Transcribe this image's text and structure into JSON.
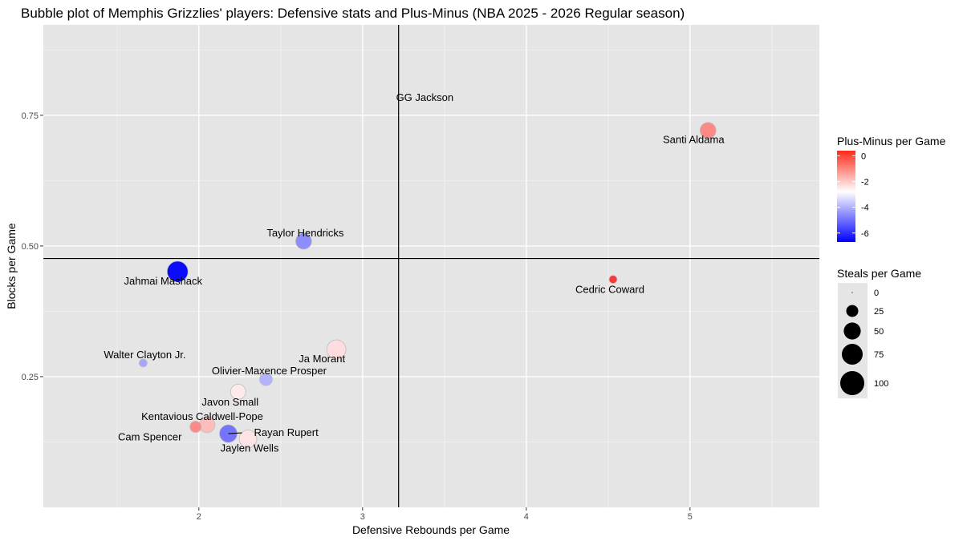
{
  "chart_data": {
    "type": "scatter",
    "title": "Bubble plot of Memphis Grizzlies' players: Defensive stats and Plus-Minus (NBA 2025 - 2026 Regular season)",
    "xlabel": "Defensive Rebounds per Game",
    "ylabel": "Blocks per Game",
    "xlim": [
      1.05,
      5.79
    ],
    "ylim": [
      0.0,
      0.923
    ],
    "x_ticks": [
      2,
      3,
      4,
      5
    ],
    "x_tick_labels": [
      "2",
      "3",
      "4",
      "5"
    ],
    "y_ticks": [
      0.25,
      0.5,
      0.75
    ],
    "y_tick_labels": [
      "0.25",
      "0.50",
      "0.75"
    ],
    "grid": true,
    "reference_lines": {
      "vertical_x": 3.22,
      "horizontal_y": 0.476
    },
    "points": [
      {
        "name": "GG Jackson",
        "x": 3.38,
        "y": 0.802,
        "steals": 0,
        "plus_minus": -2.0
      },
      {
        "name": "Santi Aldama",
        "x": 5.11,
        "y": 0.721,
        "steals": 44,
        "plus_minus": -1.0
      },
      {
        "name": "Taylor Hendricks",
        "x": 2.64,
        "y": 0.509,
        "steals": 44,
        "plus_minus": -4.6
      },
      {
        "name": "Jahmai Mashack",
        "x": 1.87,
        "y": 0.451,
        "steals": 75,
        "plus_minus": -6.7
      },
      {
        "name": "Cedric Coward",
        "x": 4.53,
        "y": 0.436,
        "steals": 11,
        "plus_minus": 0.3
      },
      {
        "name": "Ja Morant",
        "x": 2.84,
        "y": 0.302,
        "steals": 64,
        "plus_minus": -2.3
      },
      {
        "name": "Walter Clayton Jr.",
        "x": 1.66,
        "y": 0.276,
        "steals": 11,
        "plus_minus": -4.2
      },
      {
        "name": "Olivier-Maxence Prosper",
        "x": 2.41,
        "y": 0.245,
        "steals": 28,
        "plus_minus": -4.0
      },
      {
        "name": "Javon Small",
        "x": 2.24,
        "y": 0.221,
        "steals": 40,
        "plus_minus": -2.5
      },
      {
        "name": "Kentavious Caldwell-Pope",
        "x": 2.05,
        "y": 0.158,
        "steals": 44,
        "plus_minus": -1.8
      },
      {
        "name": "Cam Spencer",
        "x": 1.98,
        "y": 0.154,
        "steals": 22,
        "plus_minus": -1.0
      },
      {
        "name": "Rayan Rupert",
        "x": 2.18,
        "y": 0.141,
        "steals": 54,
        "plus_minus": -5.0
      },
      {
        "name": "Jaylen Wells",
        "x": 2.3,
        "y": 0.131,
        "steals": 54,
        "plus_minus": -2.4
      }
    ],
    "color_legend": {
      "title": "Plus-Minus per Game",
      "range": [
        -6.7,
        0.4
      ],
      "midpoint": -2.8,
      "low_color": "#0000FF",
      "mid_color": "#FFFFFF",
      "high_color": "#FF0000",
      "ticks": [
        0,
        -2,
        -4,
        -6
      ],
      "tick_labels": [
        "0",
        "-2",
        "-4",
        "-6"
      ],
      "placement": "right"
    },
    "size_legend": {
      "title": "Steals per Game",
      "values": [
        0,
        25,
        50,
        75,
        100
      ],
      "labels": [
        "0",
        "25",
        "50",
        "75",
        "100"
      ],
      "placement": "right"
    }
  }
}
